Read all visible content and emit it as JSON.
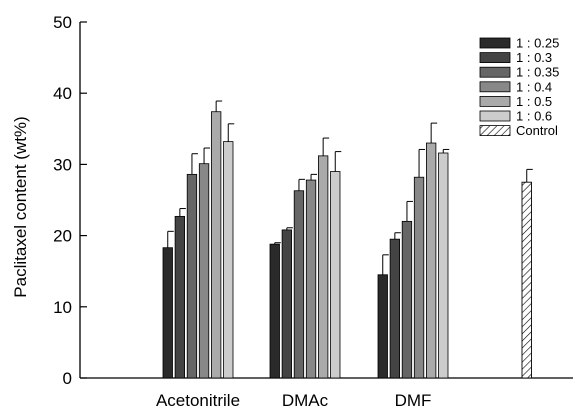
{
  "chart_data": {
    "type": "bar",
    "title": "",
    "xlabel": "",
    "ylabel": "Paclitaxel content (wt%)",
    "ylim": [
      0,
      50
    ],
    "yticks": [
      0,
      10,
      20,
      30,
      40,
      50
    ],
    "grid": false,
    "legend_position": "top-right",
    "categories": [
      "Acetonitrile",
      "DMAc",
      "DMF"
    ],
    "series": [
      {
        "name": "1 : 0.25",
        "color": "#2a2a2a",
        "values": [
          18.3,
          18.8,
          14.5
        ],
        "errors": [
          2.3,
          0.2,
          2.8
        ]
      },
      {
        "name": "1 : 0.3",
        "color": "#444444",
        "values": [
          22.7,
          20.8,
          19.5
        ],
        "errors": [
          1.1,
          0.3,
          0.9
        ]
      },
      {
        "name": "1 : 0.35",
        "color": "#666666",
        "values": [
          28.6,
          26.3,
          22.0
        ],
        "errors": [
          2.9,
          1.6,
          2.8
        ]
      },
      {
        "name": "1 : 0.4",
        "color": "#888888",
        "values": [
          30.1,
          27.8,
          28.2
        ],
        "errors": [
          2.2,
          0.8,
          3.9
        ]
      },
      {
        "name": "1 : 0.5",
        "color": "#aaaaaa",
        "values": [
          37.4,
          31.2,
          33.0
        ],
        "errors": [
          1.5,
          2.5,
          2.8
        ]
      },
      {
        "name": "1 : 0.6",
        "color": "#cccccc",
        "values": [
          33.2,
          29.0,
          31.6
        ],
        "errors": [
          2.5,
          2.8,
          0.5
        ]
      }
    ],
    "control": {
      "name": "Control",
      "value": 27.5,
      "error": 1.8,
      "pattern": "hatched"
    }
  }
}
